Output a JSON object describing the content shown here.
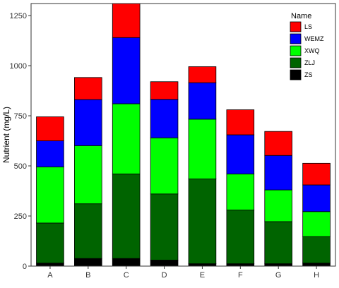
{
  "chart_data": {
    "type": "bar",
    "stacked": true,
    "categories": [
      "A",
      "B",
      "C",
      "D",
      "E",
      "F",
      "G",
      "H"
    ],
    "ylabel": "Nutrient (mg/L)",
    "xlabel": "",
    "ylim": [
      0,
      1310
    ],
    "yticks": [
      0,
      250,
      500,
      750,
      1000,
      1250
    ],
    "grid": false,
    "legend": {
      "title": "Name",
      "position": "top-right"
    },
    "series": [
      {
        "name": "ZS",
        "color": "#000000",
        "values": [
          15,
          38,
          38,
          30,
          12,
          12,
          12,
          15
        ]
      },
      {
        "name": "ZLJ",
        "color": "#006400",
        "values": [
          200,
          273,
          422,
          330,
          423,
          268,
          210,
          132
        ]
      },
      {
        "name": "XWQ",
        "color": "#00FF00",
        "values": [
          280,
          290,
          350,
          280,
          298,
          180,
          158,
          125
        ]
      },
      {
        "name": "WEMZ",
        "color": "#0000FF",
        "values": [
          130,
          230,
          330,
          192,
          182,
          195,
          172,
          133
        ]
      },
      {
        "name": "LS",
        "color": "#FF0000",
        "values": [
          120,
          110,
          170,
          88,
          80,
          125,
          120,
          108
        ]
      }
    ]
  }
}
